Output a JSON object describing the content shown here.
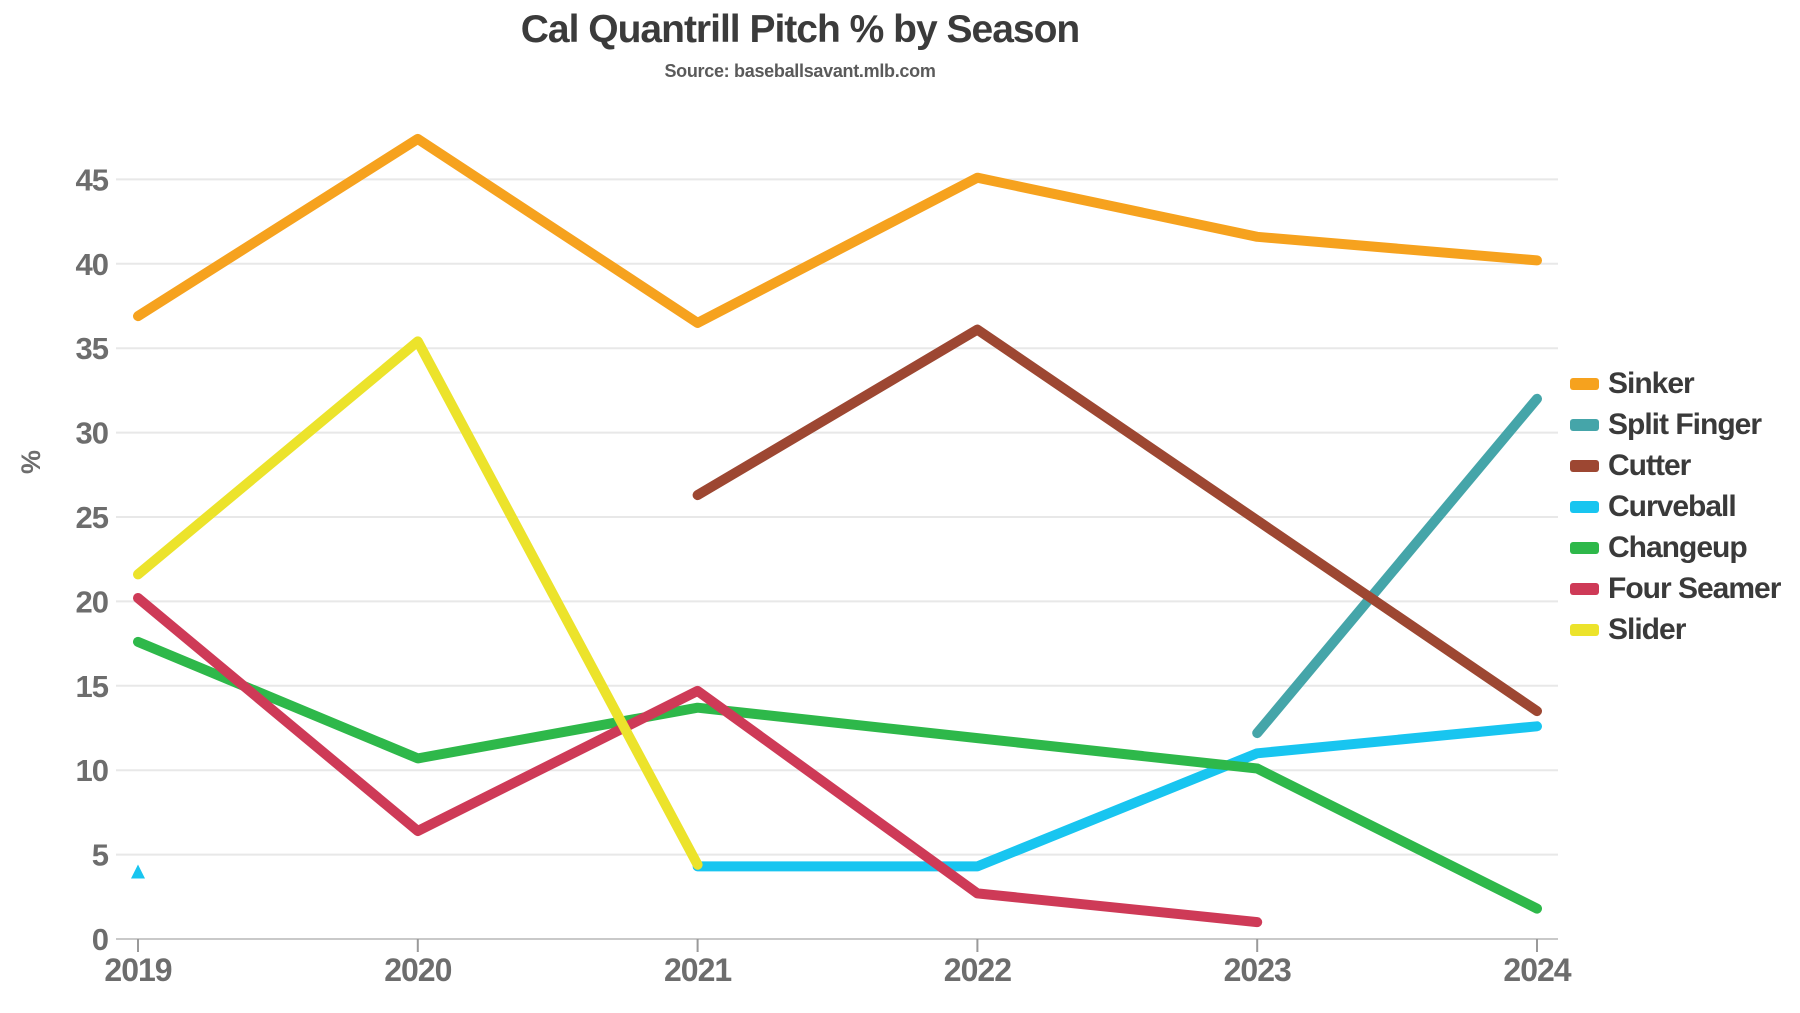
{
  "title": "Cal Quantrill Pitch % by Season",
  "subtitle": "Source: baseballsavant.mlb.com",
  "chart_data": {
    "type": "line",
    "x": [
      2019,
      2020,
      2021,
      2022,
      2023,
      2024
    ],
    "xlabel": "",
    "ylabel": "%",
    "ylim": [
      0,
      50
    ],
    "yticks": [
      0,
      5,
      10,
      15,
      20,
      25,
      30,
      35,
      40,
      45
    ],
    "grid": true,
    "legend_position": "right",
    "series": [
      {
        "name": "Sinker",
        "color": "#F6A21E",
        "values": [
          36.9,
          47.4,
          36.5,
          45.1,
          41.6,
          40.2
        ]
      },
      {
        "name": "Split Finger",
        "color": "#45A5A9",
        "values": [
          null,
          null,
          null,
          null,
          12.2,
          32.0
        ]
      },
      {
        "name": "Cutter",
        "color": "#9D4732",
        "values": [
          null,
          null,
          26.3,
          36.1,
          24.8,
          13.5
        ]
      },
      {
        "name": "Curveball",
        "color": "#18C5F0",
        "values": [
          4.0,
          null,
          4.3,
          4.3,
          11.0,
          12.6
        ]
      },
      {
        "name": "Changeup",
        "color": "#2EB84A",
        "values": [
          17.6,
          10.7,
          13.7,
          11.9,
          10.1,
          1.8
        ]
      },
      {
        "name": "Four Seamer",
        "color": "#CE3A57",
        "values": [
          20.2,
          6.4,
          14.7,
          2.7,
          1.0,
          null
        ]
      },
      {
        "name": "Slider",
        "color": "#ECE32B",
        "values": [
          21.6,
          35.4,
          4.4,
          null,
          null,
          null
        ]
      }
    ],
    "colors": {
      "grid": "#e8e8e8",
      "baseline": "#c9c9c9",
      "tick": "#9a9a9a",
      "axis_text": "#6d6d6d"
    }
  }
}
